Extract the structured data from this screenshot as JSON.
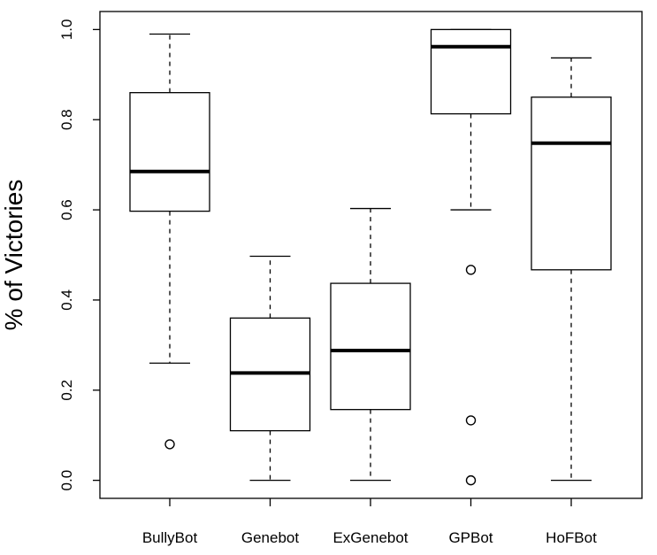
{
  "chart_data": {
    "type": "boxplot",
    "ylabel": "% of Victories",
    "ylim": [
      -0.04,
      1.04
    ],
    "yticks": [
      0.0,
      0.2,
      0.4,
      0.6,
      0.8,
      1.0
    ],
    "ytick_labels": [
      "0.0",
      "0.2",
      "0.4",
      "0.6",
      "0.8",
      "1.0"
    ],
    "categories": [
      "BullyBot",
      "Genebot",
      "ExGenebot",
      "GPBot",
      "HoFBot"
    ],
    "boxes": [
      {
        "name": "BullyBot",
        "whisker_low": 0.26,
        "q1": 0.597,
        "median": 0.685,
        "q3": 0.86,
        "whisker_high": 0.99,
        "outliers": [
          0.08
        ]
      },
      {
        "name": "Genebot",
        "whisker_low": 0.0,
        "q1": 0.11,
        "median": 0.238,
        "q3": 0.36,
        "whisker_high": 0.497,
        "outliers": []
      },
      {
        "name": "ExGenebot",
        "whisker_low": 0.0,
        "q1": 0.157,
        "median": 0.288,
        "q3": 0.437,
        "whisker_high": 0.603,
        "outliers": []
      },
      {
        "name": "GPBot",
        "whisker_low": 0.6,
        "q1": 0.813,
        "median": 0.962,
        "q3": 1.0,
        "whisker_high": 1.0,
        "outliers": [
          0.467,
          0.133,
          0.0
        ]
      },
      {
        "name": "HoFBot",
        "whisker_low": 0.0,
        "q1": 0.467,
        "median": 0.748,
        "q3": 0.85,
        "whisker_high": 0.937,
        "outliers": []
      }
    ],
    "grid": false,
    "legend": "none"
  }
}
